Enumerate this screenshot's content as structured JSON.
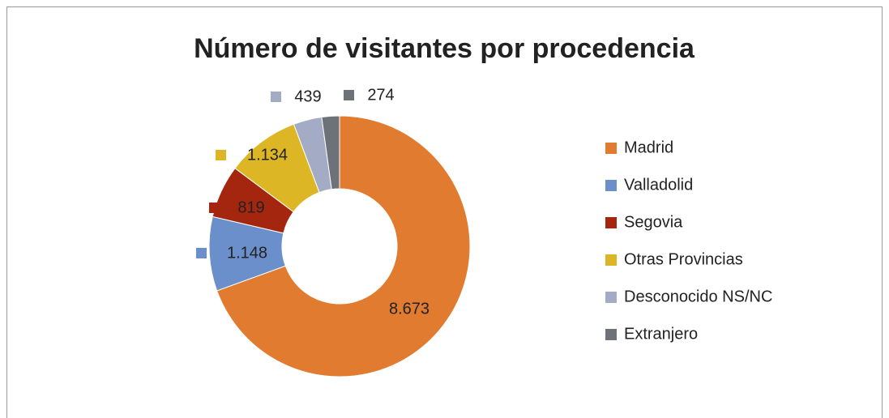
{
  "chart_data": {
    "type": "donut",
    "title": "Número de visitantes por procedencia",
    "categories": [
      "Madrid",
      "Valladolid",
      "Segovia",
      "Otras Provincias",
      "Desconocido NS/NC",
      "Extranjero"
    ],
    "values": [
      8673,
      1148,
      819,
      1134,
      439,
      274
    ],
    "value_labels": [
      "8.673",
      "1.148",
      "819",
      "1.134",
      "439",
      "274"
    ],
    "colors": [
      "#e07b30",
      "#6b8fcb",
      "#a5260f",
      "#dcb624",
      "#a3acc4",
      "#6d7278"
    ],
    "legend": "right"
  }
}
